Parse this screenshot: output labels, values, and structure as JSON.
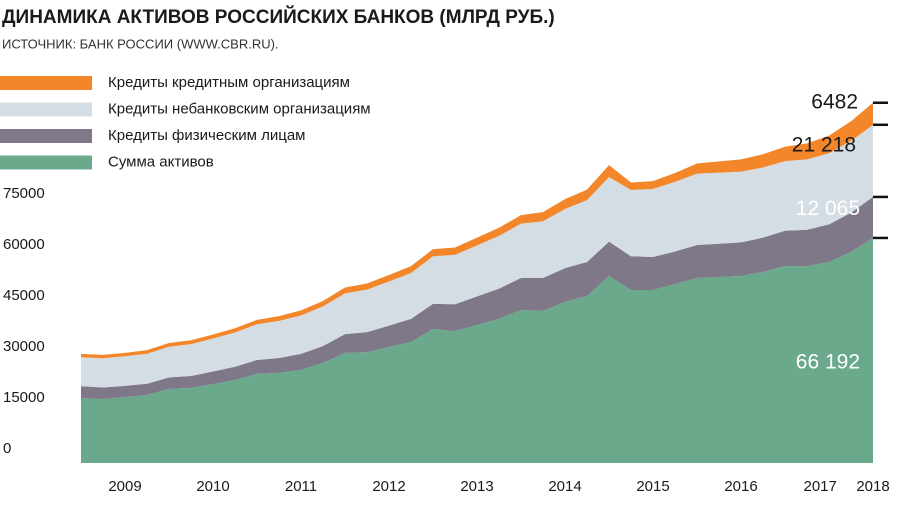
{
  "chart_data": {
    "type": "stacked-area",
    "title": "ДИНАМИКА АКТИВОВ РОССИЙСКИХ БАНКОВ (МЛРД РУБ.)",
    "subtitle": "ИСТОЧНИК: БАНК РОССИИ (WWW.CBR.RU).",
    "x": [
      2009,
      2009.25,
      2009.5,
      2009.75,
      2010,
      2010.25,
      2010.5,
      2010.75,
      2011,
      2011.25,
      2011.5,
      2011.75,
      2012,
      2012.25,
      2012.5,
      2012.75,
      2013,
      2013.25,
      2013.5,
      2013.75,
      2014,
      2014.25,
      2014.5,
      2014.75,
      2015,
      2015.25,
      2015.5,
      2015.75,
      2016,
      2016.25,
      2016.5,
      2016.75,
      2017,
      2017.25,
      2017.5,
      2017.75,
      2018
    ],
    "xlim": [
      2009,
      2018
    ],
    "xticks": [
      {
        "value": 2009.5,
        "label": "2009"
      },
      {
        "value": 2010.5,
        "label": "2010"
      },
      {
        "value": 2011.5,
        "label": "2011"
      },
      {
        "value": 2012.5,
        "label": "2012"
      },
      {
        "value": 2013.5,
        "label": "2013"
      },
      {
        "value": 2014.5,
        "label": "2014"
      },
      {
        "value": 2015.5,
        "label": "2015"
      },
      {
        "value": 2016.5,
        "label": "2016"
      },
      {
        "value": 2017.4,
        "label": "2017"
      },
      {
        "value": 2018,
        "label": "2018"
      }
    ],
    "ylim": [
      0,
      110000
    ],
    "yticks": [
      0,
      15000,
      30000,
      45000,
      60000,
      75000
    ],
    "series": [
      {
        "name": "Сумма активов",
        "color": "#6aa98b",
        "end_label": "66 192",
        "end_label_color": "#ffffff",
        "values": [
          19100,
          18800,
          19400,
          20000,
          21800,
          22100,
          23200,
          24400,
          26200,
          26500,
          27400,
          29400,
          32400,
          32600,
          34100,
          35600,
          39400,
          38800,
          40600,
          42400,
          45000,
          44700,
          47400,
          49100,
          55000,
          50900,
          50900,
          52600,
          54400,
          54700,
          55000,
          56200,
          57900,
          57900,
          59100,
          62100,
          66192
        ]
      },
      {
        "name": "Кредиты физическим лицам",
        "color": "#7e7889",
        "end_label": "12 065",
        "end_label_color": "#ffffff",
        "values": [
          3500,
          3400,
          3300,
          3300,
          3400,
          3500,
          3700,
          3900,
          4100,
          4400,
          4700,
          5000,
          5500,
          5900,
          6300,
          6800,
          7400,
          7900,
          8400,
          8900,
          9400,
          9700,
          9900,
          10000,
          10100,
          9900,
          9700,
          9600,
          9700,
          9800,
          9900,
          10100,
          10400,
          10700,
          11100,
          11500,
          12065
        ]
      },
      {
        "name": "Кредиты небанковским организациям",
        "color": "#d3dde3",
        "end_label": "21 218",
        "end_label_color": "#1a1a1a",
        "values": [
          8500,
          8600,
          8700,
          8850,
          9000,
          9350,
          9700,
          10100,
          10500,
          10900,
          11300,
          11650,
          12000,
          12500,
          13000,
          13500,
          14000,
          14500,
          15000,
          15500,
          16000,
          16700,
          17400,
          18200,
          19000,
          19500,
          20000,
          20500,
          21000,
          20900,
          20800,
          20600,
          20500,
          20700,
          20900,
          21100,
          21218
        ]
      },
      {
        "name": "Кредиты кредитным организациям",
        "color": "#f4862a",
        "end_label": "6482",
        "end_label_color": "#1a1a1a",
        "values": [
          1000,
          1000,
          1000,
          1050,
          1100,
          1150,
          1200,
          1250,
          1300,
          1400,
          1500,
          1600,
          1700,
          1800,
          1900,
          2000,
          2100,
          2200,
          2300,
          2400,
          2500,
          2700,
          2900,
          3100,
          3500,
          2200,
          2300,
          2600,
          3000,
          3300,
          3600,
          3900,
          4200,
          4700,
          5200,
          5800,
          6482
        ]
      }
    ]
  }
}
